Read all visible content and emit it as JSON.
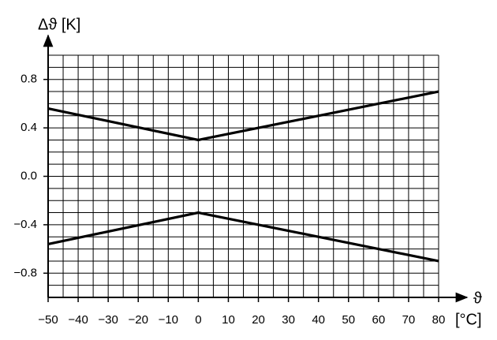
{
  "chart_data": {
    "type": "line",
    "y_label": "Δϑ [K]",
    "x_label": "ϑ",
    "x_unit": "[°C]",
    "x": [
      -50,
      0,
      80
    ],
    "series": [
      {
        "color": "#000000",
        "values": [
          0.56,
          0.3,
          0.7
        ]
      },
      {
        "color": "#000000",
        "values": [
          -0.56,
          -0.3,
          -0.7
        ]
      }
    ],
    "xlim": [
      -50,
      80
    ],
    "ylim": [
      -1.0,
      1.0
    ],
    "xticks": [
      {
        "value": -50,
        "label": "−50"
      },
      {
        "value": -40,
        "label": "−40"
      },
      {
        "value": -30,
        "label": "−30"
      },
      {
        "value": -20,
        "label": "−20"
      },
      {
        "value": -10,
        "label": "−10"
      },
      0,
      10,
      20,
      30,
      40,
      50,
      60,
      70,
      80
    ],
    "yticks": [
      {
        "value": -0.8,
        "label": "−0.8"
      },
      {
        "value": -0.4,
        "label": "−0.4"
      },
      {
        "value": 0,
        "label": "0.0"
      },
      0.4,
      0.8
    ],
    "grid": true,
    "minor_grid": {
      "x": 5,
      "y": 0.1
    }
  }
}
